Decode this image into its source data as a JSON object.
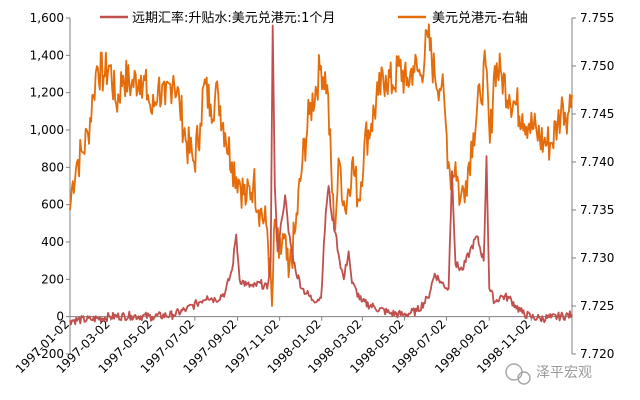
{
  "chart_data": {
    "type": "line",
    "title": "",
    "xlabel": "",
    "ylabel_left": "",
    "ylabel_right": "",
    "x_tick_labels": [
      "1997-01-02",
      "1997-03-02",
      "1997-05-02",
      "1997-07-02",
      "1997-09-02",
      "1997-11-02",
      "1998-01-02",
      "1998-03-02",
      "1998-05-02",
      "1998-07-02",
      "1998-09-02",
      "1998-11-02"
    ],
    "y_left": {
      "min": -200,
      "max": 1600,
      "ticks": [
        -200,
        0,
        200,
        400,
        600,
        800,
        1000,
        1200,
        1400,
        1600
      ],
      "tick_labels": [
        "-200",
        "0",
        "200",
        "400",
        "600",
        "800",
        "1,000",
        "1,200",
        "1,400",
        "1,600"
      ]
    },
    "y_right": {
      "min": 7.72,
      "max": 7.755,
      "ticks": [
        7.72,
        7.725,
        7.73,
        7.735,
        7.74,
        7.745,
        7.75,
        7.755
      ],
      "tick_labels": [
        "7.720",
        "7.725",
        "7.730",
        "7.735",
        "7.740",
        "7.745",
        "7.750",
        "7.755"
      ]
    },
    "grid": false,
    "legend_position": "top",
    "series": [
      {
        "name": "远期汇率:升贴水:美元兑港元:1个月",
        "axis": "left",
        "color": "#c0504d",
        "points": [
          [
            "1997-01-02",
            -20
          ],
          [
            "1997-02-01",
            -15
          ],
          [
            "1997-03-01",
            0
          ],
          [
            "1997-04-01",
            5
          ],
          [
            "1997-05-01",
            0
          ],
          [
            "1997-06-01",
            10
          ],
          [
            "1997-06-20",
            40
          ],
          [
            "1997-07-05",
            70
          ],
          [
            "1997-07-20",
            110
          ],
          [
            "1997-08-01",
            90
          ],
          [
            "1997-08-15",
            130
          ],
          [
            "1997-08-25",
            250
          ],
          [
            "1997-08-31",
            440
          ],
          [
            "1997-09-05",
            200
          ],
          [
            "1997-09-15",
            170
          ],
          [
            "1997-09-25",
            160
          ],
          [
            "1997-10-05",
            180
          ],
          [
            "1997-10-15",
            150
          ],
          [
            "1997-10-20",
            300
          ],
          [
            "1997-10-23",
            1560
          ],
          [
            "1997-10-26",
            700
          ],
          [
            "1997-10-30",
            350
          ],
          [
            "1997-11-05",
            520
          ],
          [
            "1997-11-10",
            650
          ],
          [
            "1997-11-15",
            450
          ],
          [
            "1997-11-25",
            250
          ],
          [
            "1997-12-05",
            150
          ],
          [
            "1997-12-20",
            90
          ],
          [
            "1998-01-01",
            100
          ],
          [
            "1998-01-08",
            560
          ],
          [
            "1998-01-12",
            700
          ],
          [
            "1998-01-16",
            560
          ],
          [
            "1998-01-22",
            450
          ],
          [
            "1998-01-28",
            300
          ],
          [
            "1998-02-03",
            200
          ],
          [
            "1998-02-10",
            350
          ],
          [
            "1998-02-15",
            180
          ],
          [
            "1998-03-01",
            80
          ],
          [
            "1998-03-20",
            50
          ],
          [
            "1998-04-10",
            20
          ],
          [
            "1998-05-01",
            10
          ],
          [
            "1998-05-20",
            30
          ],
          [
            "1998-06-05",
            100
          ],
          [
            "1998-06-15",
            230
          ],
          [
            "1998-06-25",
            180
          ],
          [
            "1998-07-05",
            150
          ],
          [
            "1998-07-10",
            780
          ],
          [
            "1998-07-15",
            280
          ],
          [
            "1998-07-25",
            250
          ],
          [
            "1998-08-05",
            350
          ],
          [
            "1998-08-15",
            430
          ],
          [
            "1998-08-25",
            300
          ],
          [
            "1998-08-29",
            860
          ],
          [
            "1998-09-02",
            150
          ],
          [
            "1998-09-10",
            80
          ],
          [
            "1998-09-20",
            110
          ],
          [
            "1998-10-01",
            100
          ],
          [
            "1998-10-10",
            60
          ],
          [
            "1998-10-20",
            20
          ],
          [
            "1998-11-01",
            0
          ],
          [
            "1998-11-15",
            -10
          ],
          [
            "1998-12-01",
            -5
          ],
          [
            "1998-12-31",
            10
          ]
        ]
      },
      {
        "name": "美元兑港元-右轴",
        "axis": "right",
        "color": "#e46c0a",
        "points": [
          [
            "1997-01-02",
            7.735
          ],
          [
            "1997-01-06",
            7.738
          ],
          [
            "1997-01-12",
            7.74
          ],
          [
            "1997-01-20",
            7.741
          ],
          [
            "1997-01-28",
            7.743
          ],
          [
            "1997-02-05",
            7.747
          ],
          [
            "1997-02-10",
            7.75
          ],
          [
            "1997-02-20",
            7.749
          ],
          [
            "1997-03-01",
            7.75
          ],
          [
            "1997-03-10",
            7.746
          ],
          [
            "1997-03-20",
            7.749
          ],
          [
            "1997-04-01",
            7.748
          ],
          [
            "1997-04-15",
            7.749
          ],
          [
            "1997-04-25",
            7.747
          ],
          [
            "1997-05-01",
            7.745
          ],
          [
            "1997-05-10",
            7.748
          ],
          [
            "1997-05-20",
            7.746
          ],
          [
            "1997-06-01",
            7.749
          ],
          [
            "1997-06-10",
            7.746
          ],
          [
            "1997-06-20",
            7.742
          ],
          [
            "1997-07-01",
            7.74
          ],
          [
            "1997-07-10",
            7.744
          ],
          [
            "1997-07-15",
            7.748
          ],
          [
            "1997-07-25",
            7.746
          ],
          [
            "1997-08-05",
            7.747
          ],
          [
            "1997-08-15",
            7.743
          ],
          [
            "1997-08-25",
            7.74
          ],
          [
            "1997-09-05",
            7.738
          ],
          [
            "1997-09-15",
            7.736
          ],
          [
            "1997-09-25",
            7.738
          ],
          [
            "1997-10-05",
            7.735
          ],
          [
            "1997-10-15",
            7.733
          ],
          [
            "1997-10-22",
            7.725
          ],
          [
            "1997-10-26",
            7.734
          ],
          [
            "1997-11-01",
            7.73
          ],
          [
            "1997-11-08",
            7.732
          ],
          [
            "1997-11-15",
            7.728
          ],
          [
            "1997-11-25",
            7.733
          ],
          [
            "1997-12-05",
            7.74
          ],
          [
            "1997-12-15",
            7.745
          ],
          [
            "1998-01-01",
            7.75
          ],
          [
            "1998-01-10",
            7.748
          ],
          [
            "1998-01-20",
            7.733
          ],
          [
            "1998-01-28",
            7.74
          ],
          [
            "1998-02-05",
            7.735
          ],
          [
            "1998-02-15",
            7.74
          ],
          [
            "1998-02-25",
            7.736
          ],
          [
            "1998-03-05",
            7.742
          ],
          [
            "1998-03-15",
            7.744
          ],
          [
            "1998-03-25",
            7.747
          ],
          [
            "1998-04-05",
            7.749
          ],
          [
            "1998-04-15",
            7.748
          ],
          [
            "1998-04-25",
            7.75
          ],
          [
            "1998-05-05",
            7.748
          ],
          [
            "1998-05-15",
            7.75
          ],
          [
            "1998-05-25",
            7.749
          ],
          [
            "1998-06-05",
            7.753
          ],
          [
            "1998-06-15",
            7.749
          ],
          [
            "1998-06-25",
            7.748
          ],
          [
            "1998-07-01",
            7.744
          ],
          [
            "1998-07-05",
            7.74
          ],
          [
            "1998-07-10",
            7.738
          ],
          [
            "1998-07-15",
            7.74
          ],
          [
            "1998-07-22",
            7.736
          ],
          [
            "1998-07-30",
            7.738
          ],
          [
            "1998-08-10",
            7.743
          ],
          [
            "1998-08-20",
            7.747
          ],
          [
            "1998-08-28",
            7.75
          ],
          [
            "1998-09-03",
            7.742
          ],
          [
            "1998-09-10",
            7.75
          ],
          [
            "1998-09-20",
            7.749
          ],
          [
            "1998-10-01",
            7.747
          ],
          [
            "1998-10-10",
            7.746
          ],
          [
            "1998-10-20",
            7.745
          ],
          [
            "1998-10-30",
            7.744
          ],
          [
            "1998-11-10",
            7.743
          ],
          [
            "1998-11-20",
            7.742
          ],
          [
            "1998-12-01",
            7.742
          ],
          [
            "1998-12-10",
            7.744
          ],
          [
            "1998-12-18",
            7.746
          ],
          [
            "1998-12-25",
            7.745
          ],
          [
            "1998-12-31",
            7.747
          ]
        ]
      }
    ]
  },
  "watermark": {
    "text": "泽平宏观"
  }
}
